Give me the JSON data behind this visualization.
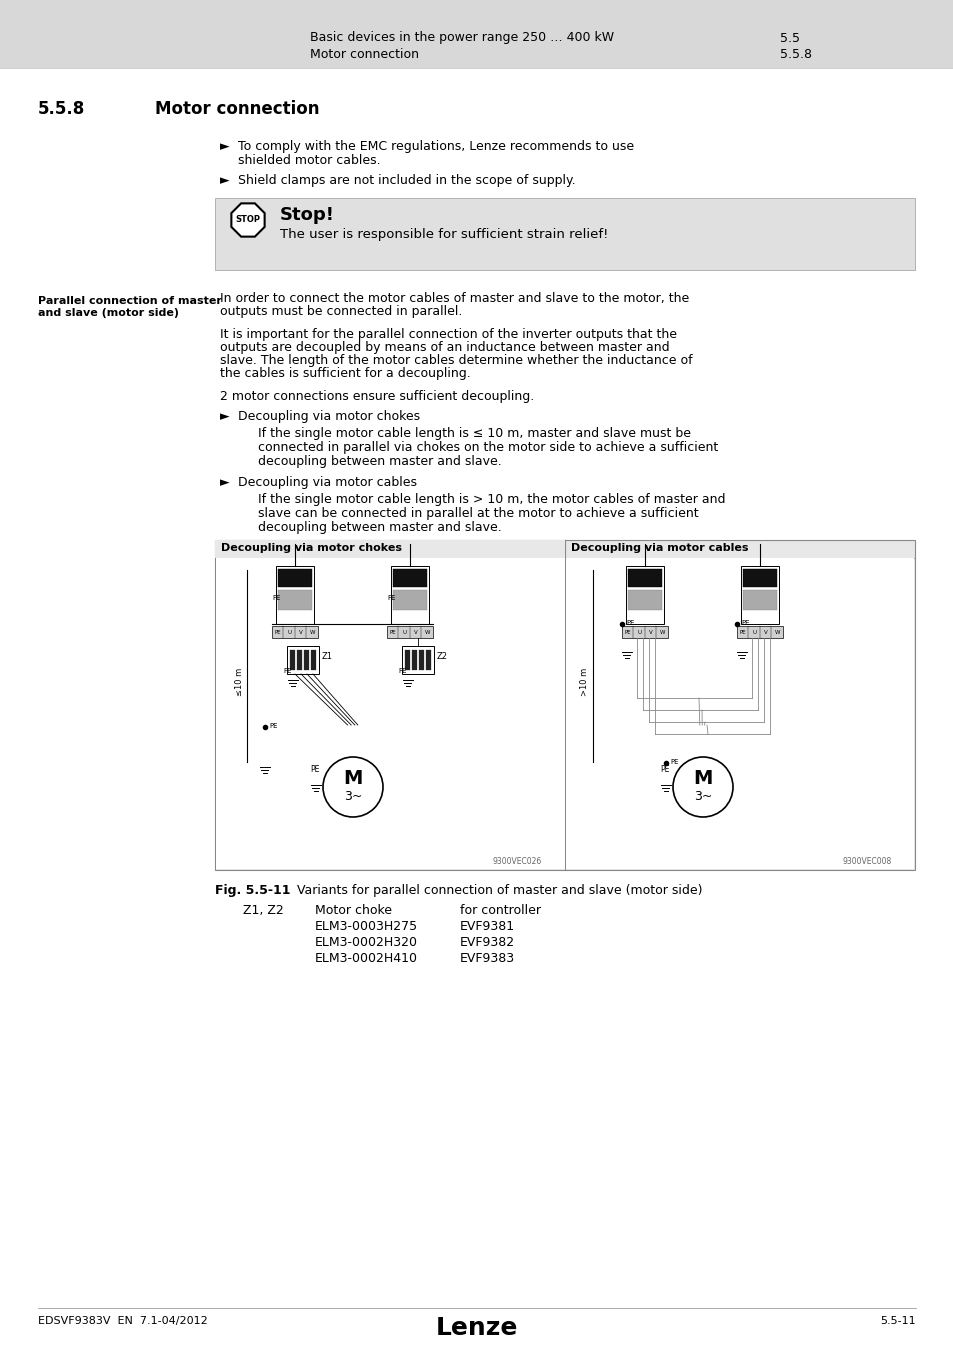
{
  "bg_color": "#d8d8d8",
  "page_bg": "#ffffff",
  "header_text1": "Basic devices in the power range 250 … 400 kW",
  "header_num1": "5.5",
  "header_text2": "Motor connection",
  "header_num2": "5.5.8",
  "section_num": "5.5.8",
  "section_title": "Motor connection",
  "stop_title": "Stop!",
  "stop_text": "The user is responsible for sufficient strain relief!",
  "side_label_line1": "Parallel connection of master",
  "side_label_line2": "and slave (motor side)",
  "para1_line1": "In order to connect the motor cables of master and slave to the motor, the",
  "para1_line2": "outputs must be connected in parallel.",
  "para2_line1": "It is important for the parallel connection of the inverter outputs that the",
  "para2_line2": "outputs are decoupled by means of an inductance between master and",
  "para2_line3": "slave. The length of the motor cables determine whether the inductance of",
  "para2_line4": "the cables is sufficient for a decoupling.",
  "para3": "2 motor connections ensure sufficient decoupling.",
  "b3": "Decoupling via motor chokes",
  "b3_sub1": "If the single motor cable length is ≤ 10 m, master and slave must be",
  "b3_sub2": "connected in parallel via chokes on the motor side to achieve a sufficient",
  "b3_sub3": "decoupling between master and slave.",
  "b4": "Decoupling via motor cables",
  "b4_sub1": "If the single motor cable length is > 10 m, the motor cables of master and",
  "b4_sub2": "slave can be connected in parallel at the motor to achieve a sufficient",
  "b4_sub3": "decoupling between master and slave.",
  "diag_label1": "Decoupling via motor chokes",
  "diag_label2": "Decoupling via motor cables",
  "fig_label": "Fig. 5.5-11",
  "fig_caption": "Variants for parallel connection of master and slave (motor side)",
  "z1z2_label": "Z1, Z2",
  "z1z2_text1": "Motor choke",
  "z1z2_text2": "ELM3-0003H275",
  "z1z2_text3": "ELM3-0002H320",
  "z1z2_text4": "ELM3-0002H410",
  "ctrl_label": "for controller",
  "ctrl_text1": "EVF9381",
  "ctrl_text2": "EVF9382",
  "ctrl_text3": "EVF9383",
  "watermark1": "9300VEC026",
  "watermark2": "9300VEC008",
  "footer_left": "EDSVF9383V  EN  7.1-04/2012",
  "footer_center": "Lenze",
  "footer_right": "5.5-11",
  "stop_bg": "#e0e0e0",
  "diag_bg": "#e8e8e8"
}
